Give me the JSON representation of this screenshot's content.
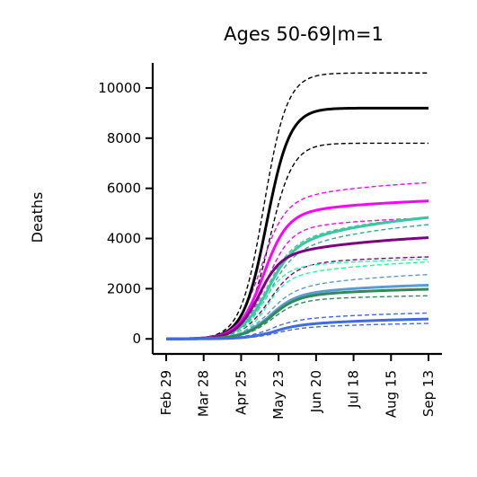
{
  "chart_data": {
    "type": "line",
    "title": "Ages 50-69|m=1",
    "xlabel": "",
    "ylabel": "Deaths",
    "x_tick_labels": [
      "Feb 29",
      "Mar 28",
      "Apr 25",
      "May 23",
      "Jun 20",
      "Jul 18",
      "Aug 15",
      "Sep 13"
    ],
    "x_tick_days": [
      0,
      28,
      56,
      84,
      112,
      140,
      168,
      196
    ],
    "x_range_days": [
      0,
      196
    ],
    "y_ticks": [
      0,
      2000,
      4000,
      6000,
      8000,
      10000
    ],
    "ylim": [
      -600,
      11000
    ],
    "grid": false,
    "series": [
      {
        "color": "#000000",
        "dashed": false,
        "kind": "logistic",
        "params": [
          9200,
          0.115,
          75,
          0
        ]
      },
      {
        "color": "#000000",
        "dashed": true,
        "kind": "logistic",
        "params": [
          10600,
          0.115,
          73,
          0
        ]
      },
      {
        "color": "#000000",
        "dashed": true,
        "kind": "logistic",
        "params": [
          7800,
          0.115,
          77,
          0
        ]
      },
      {
        "color": "#ff00ff",
        "dashed": false,
        "kind": "logistic",
        "params": [
          4900,
          0.11,
          72,
          800
        ]
      },
      {
        "color": "#ff00ff",
        "dashed": true,
        "kind": "logistic",
        "params": [
          5400,
          0.11,
          70,
          1100
        ]
      },
      {
        "color": "#ff00ff",
        "dashed": true,
        "kind": "logistic",
        "params": [
          4300,
          0.11,
          74,
          700
        ]
      },
      {
        "color": "#3ac6a0",
        "dashed": false,
        "kind": "logistic",
        "params": [
          3500,
          0.1,
          74,
          1800
        ]
      },
      {
        "color": "#3ac6a0",
        "dashed": true,
        "kind": "logistic",
        "params": [
          3600,
          0.1,
          73,
          1700
        ]
      },
      {
        "color": "#2db08a",
        "dashed": true,
        "kind": "logistic",
        "params": [
          3300,
          0.1,
          75,
          1700
        ]
      },
      {
        "color": "#800080",
        "dashed": false,
        "kind": "logistic",
        "params": [
          3200,
          0.12,
          68,
          1100
        ]
      },
      {
        "color": "#800080",
        "dashed": true,
        "kind": "logistic",
        "params": [
          2900,
          0.1,
          76,
          500
        ]
      },
      {
        "color": "#1aff9c",
        "dashed": true,
        "kind": "logistic",
        "params": [
          2800,
          0.12,
          72,
          500
        ]
      },
      {
        "color": "#1aff9c",
        "dashed": true,
        "kind": "logistic",
        "params": [
          2400,
          0.12,
          74,
          900
        ]
      },
      {
        "color": "#5b9bd5",
        "dashed": false,
        "kind": "logistic",
        "params": [
          1700,
          0.1,
          76,
          600
        ]
      },
      {
        "color": "#5b9bd5",
        "dashed": true,
        "kind": "logistic",
        "params": [
          1900,
          0.1,
          75,
          900
        ]
      },
      {
        "color": "#2e8b57",
        "dashed": false,
        "kind": "logistic",
        "params": [
          1650,
          0.1,
          77,
          450
        ]
      },
      {
        "color": "#2e8b57",
        "dashed": true,
        "kind": "logistic",
        "params": [
          1500,
          0.1,
          78,
          300
        ]
      },
      {
        "color": "#4169e1",
        "dashed": false,
        "kind": "logistic",
        "params": [
          500,
          0.1,
          78,
          400
        ]
      },
      {
        "color": "#4169e1",
        "dashed": true,
        "kind": "logistic",
        "params": [
          700,
          0.1,
          76,
          450
        ]
      },
      {
        "color": "#4169e1",
        "dashed": true,
        "kind": "logistic",
        "params": [
          400,
          0.1,
          80,
          300
        ]
      }
    ]
  }
}
